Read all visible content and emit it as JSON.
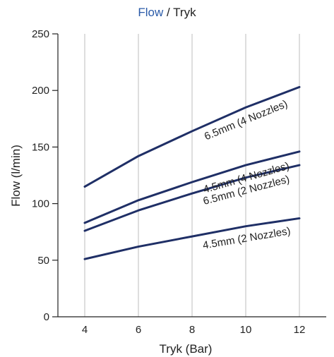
{
  "chart_data": {
    "type": "line",
    "title_part1": "Flow",
    "title_sep": " / ",
    "title_part2": "Tryk",
    "xlabel": "Tryk (Bar)",
    "ylabel": "Flow (l/min)",
    "xlim": [
      3,
      13
    ],
    "ylim": [
      0,
      250
    ],
    "xticks": [
      4,
      6,
      8,
      10,
      12
    ],
    "yticks": [
      0,
      50,
      100,
      150,
      200,
      250
    ],
    "grid": "vertical",
    "line_color": "#1f2f66",
    "title_accent_color": "#2a5aa8",
    "x": [
      4,
      6,
      8,
      10,
      12
    ],
    "series": [
      {
        "name": "6.5mm (4 Nozzles)",
        "values": [
          115,
          142,
          164,
          185,
          203
        ]
      },
      {
        "name": "4.5mm (4 Nozzles)",
        "values": [
          83,
          103,
          119,
          134,
          146
        ]
      },
      {
        "name": "6.5mm (2 Nozzles)",
        "values": [
          76,
          94,
          109,
          123,
          134
        ]
      },
      {
        "name": "4.5mm (2 Nozzles)",
        "values": [
          51,
          62,
          71,
          80,
          87
        ]
      }
    ]
  }
}
